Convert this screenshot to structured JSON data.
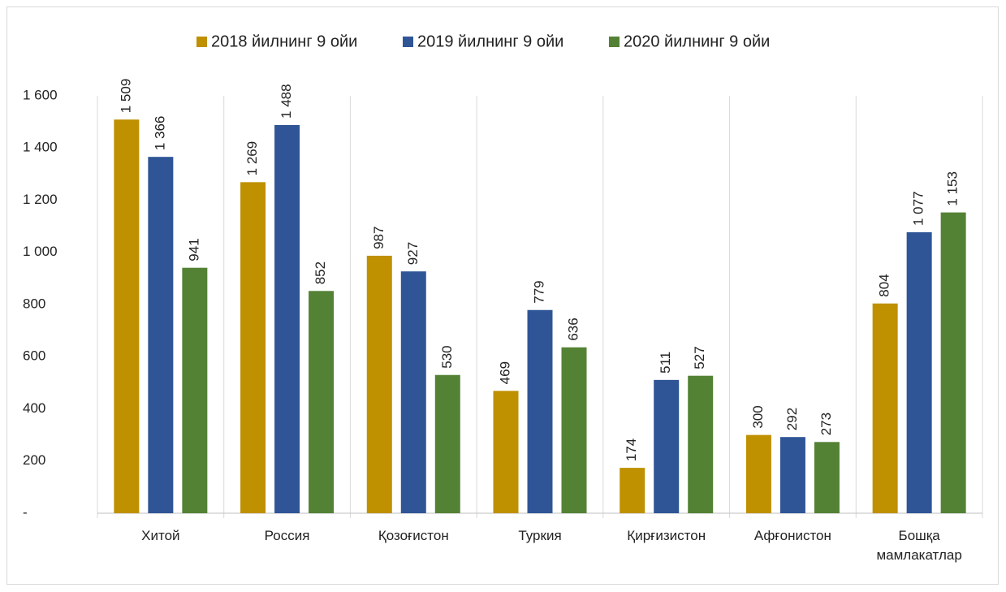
{
  "chart_data": {
    "type": "bar",
    "categories": [
      "Хитой",
      "Россия",
      "Қозоғистон",
      "Туркия",
      "Қирғизистон",
      "Афғонистон",
      "Бошқа мамлакатлар"
    ],
    "series": [
      {
        "name": "2018 йилнинг 9 ойи",
        "color": "#bf9000",
        "values": [
          1509,
          1269,
          987,
          469,
          174,
          300,
          804
        ],
        "value_labels": [
          "1 509",
          "1 269",
          "987",
          "469",
          "174",
          "300",
          "804"
        ]
      },
      {
        "name": "2019 йилнинг 9 ойи",
        "color": "#2f5597",
        "values": [
          1366,
          1488,
          927,
          779,
          511,
          292,
          1077
        ],
        "value_labels": [
          "1 366",
          "1 488",
          "927",
          "779",
          "511",
          "292",
          "1 077"
        ]
      },
      {
        "name": "2020 йилнинг 9 ойи",
        "color": "#548235",
        "values": [
          941,
          852,
          530,
          636,
          527,
          273,
          1153
        ],
        "value_labels": [
          "941",
          "852",
          "530",
          "636",
          "527",
          "273",
          "1 153"
        ]
      }
    ],
    "ylim": [
      0,
      1600
    ],
    "yticks": [
      {
        "value": 0,
        "label": "-"
      },
      200,
      400,
      600,
      800,
      {
        "value": 1000,
        "label": "1 000"
      },
      {
        "value": 1200,
        "label": "1 200"
      },
      {
        "value": 1400,
        "label": "1 400"
      },
      {
        "value": 1600,
        "label": "1 600"
      }
    ],
    "legend": "top"
  }
}
